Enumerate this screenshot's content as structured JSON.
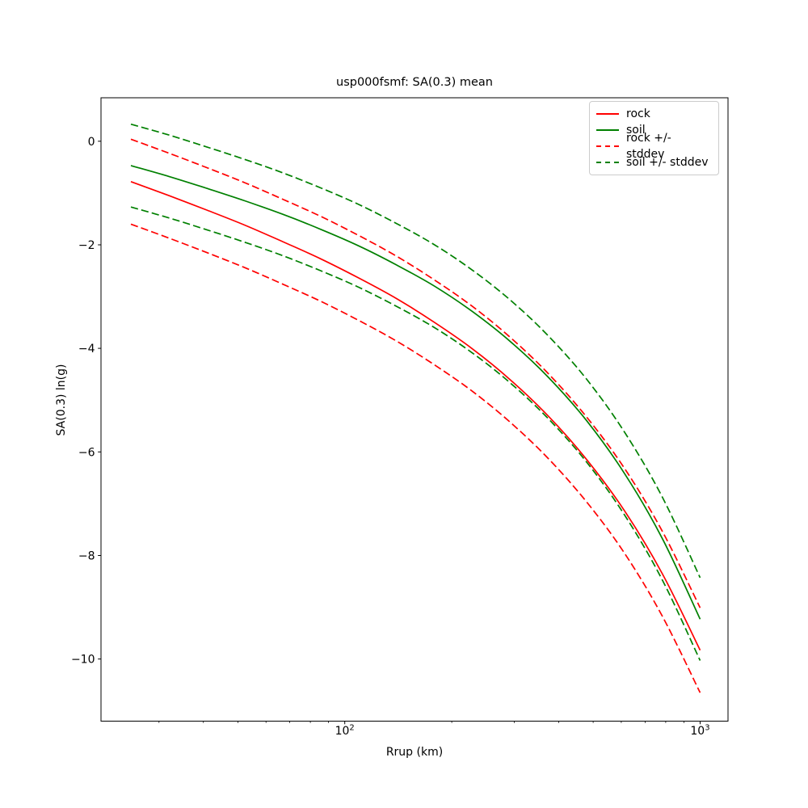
{
  "chart_data": {
    "type": "line",
    "title": "usp000fsmf: SA(0.3) mean",
    "xlabel": "Rrup (km)",
    "ylabel": "SA(0.3) ln(g)",
    "x_scale": "log",
    "y_scale": "linear",
    "grid": false,
    "xlim": [
      20.6,
      1198
    ],
    "ylim": [
      -11.2,
      0.84
    ],
    "x_major_ticks": [
      {
        "value": 100,
        "mantissa": "10",
        "exponent": "2"
      },
      {
        "value": 1000,
        "mantissa": "10",
        "exponent": "3"
      }
    ],
    "x_minor_ticks": [
      30,
      40,
      50,
      60,
      70,
      80,
      90,
      200,
      300,
      400,
      500,
      600,
      700,
      800,
      900
    ],
    "y_ticks": [
      0,
      -2,
      -4,
      -6,
      -8,
      -10
    ],
    "x": [
      25.0,
      32.0,
      40.9,
      52.3,
      66.9,
      85.5,
      109.4,
      139.9,
      178.9,
      228.7,
      292.5,
      374.1,
      478.4,
      611.7,
      782.3,
      1000.0
    ],
    "series": [
      {
        "name": "rock",
        "color": "#ff0000",
        "dash": false,
        "values": [
          -0.78,
          -1.05,
          -1.33,
          -1.62,
          -1.94,
          -2.27,
          -2.64,
          -3.04,
          -3.5,
          -4.01,
          -4.61,
          -5.31,
          -6.14,
          -7.13,
          -8.35,
          -9.83
        ]
      },
      {
        "name": "soil",
        "color": "#008000",
        "dash": false,
        "values": [
          -0.47,
          -0.68,
          -0.91,
          -1.15,
          -1.41,
          -1.7,
          -2.02,
          -2.39,
          -2.8,
          -3.29,
          -3.87,
          -4.56,
          -5.39,
          -6.41,
          -7.67,
          -9.23
        ]
      },
      {
        "name": "rock + stddev",
        "color": "#ff0000",
        "dash": true,
        "values": [
          0.04,
          -0.23,
          -0.51,
          -0.8,
          -1.12,
          -1.45,
          -1.82,
          -2.22,
          -2.68,
          -3.19,
          -3.79,
          -4.49,
          -5.32,
          -6.31,
          -7.53,
          -9.01
        ]
      },
      {
        "name": "rock - stddev",
        "color": "#ff0000",
        "dash": true,
        "values": [
          -1.6,
          -1.87,
          -2.15,
          -2.44,
          -2.76,
          -3.09,
          -3.46,
          -3.86,
          -4.32,
          -4.83,
          -5.43,
          -6.13,
          -6.96,
          -7.95,
          -9.17,
          -10.65
        ]
      },
      {
        "name": "soil + stddev",
        "color": "#008000",
        "dash": true,
        "values": [
          0.33,
          0.12,
          -0.11,
          -0.35,
          -0.61,
          -0.9,
          -1.22,
          -1.59,
          -2.0,
          -2.49,
          -3.07,
          -3.76,
          -4.59,
          -5.61,
          -6.87,
          -8.43
        ]
      },
      {
        "name": "soil - stddev",
        "color": "#008000",
        "dash": true,
        "values": [
          -1.27,
          -1.48,
          -1.71,
          -1.95,
          -2.21,
          -2.5,
          -2.82,
          -3.19,
          -3.6,
          -4.09,
          -4.67,
          -5.36,
          -6.19,
          -7.21,
          -8.47,
          -10.03
        ]
      }
    ],
    "legend": {
      "position": "upper right",
      "items": [
        {
          "label": "rock",
          "color": "#ff0000",
          "dash": false
        },
        {
          "label": "soil",
          "color": "#008000",
          "dash": false
        },
        {
          "label": "rock +/- stddev",
          "color": "#ff0000",
          "dash": true
        },
        {
          "label": "soil +/- stddev",
          "color": "#008000",
          "dash": true
        }
      ]
    }
  }
}
